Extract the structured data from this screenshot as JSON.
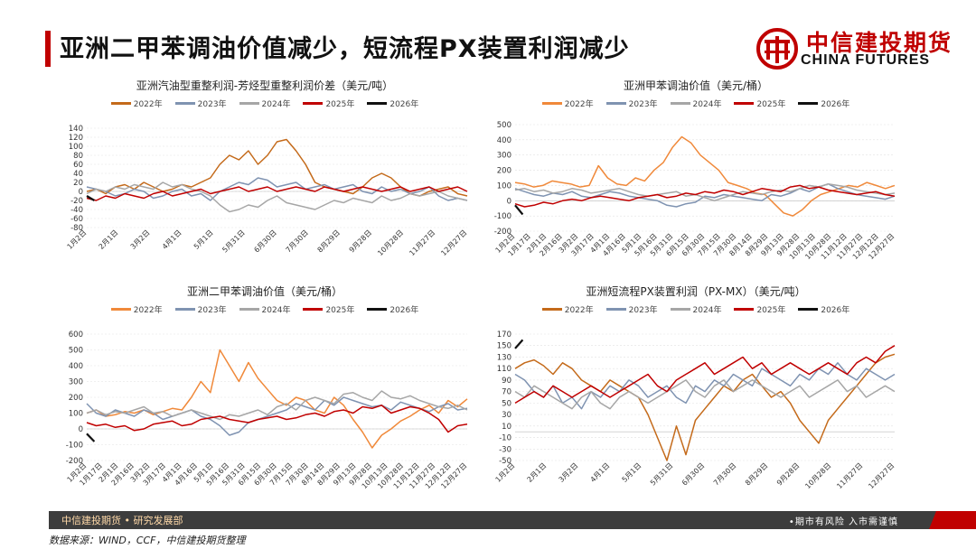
{
  "header": {
    "title": "亚洲二甲苯调油价值减少，短流程PX装置利润减少",
    "logo_cn": "中信建投期货",
    "logo_en": "CHINA FUTURES"
  },
  "footer": {
    "left": "中信建投期货 • 研究发展部",
    "right": "•期市有风险   入市需谨慎"
  },
  "source": "数据来源：WIND，CCF，中信建投期货整理",
  "colors": {
    "y2022": "#c46a1a",
    "y2023": "#7f93b1",
    "y2024": "#a6a6a6",
    "y2025": "#c00000",
    "y2026": "#111111",
    "y2022_alt": "#f0893a"
  },
  "chart_data": [
    {
      "id": "c1",
      "type": "line",
      "title": "亚洲汽油型重整利润-芳烃型重整利润价差（美元/吨）",
      "legend": [
        "2022年",
        "2023年",
        "2024年",
        "2025年",
        "2026年"
      ],
      "ylim": [
        -80,
        140
      ],
      "yticks": [
        "140",
        "120",
        "100",
        "80",
        "60",
        "40",
        "20",
        "0",
        "-20",
        "-40",
        "-60",
        "-80"
      ],
      "xticks": [
        "1月2日",
        "2月1日",
        "3月2日",
        "4月1日",
        "5月1日",
        "5月31日",
        "6月30日",
        "7月30日",
        "8月29日",
        "9月28日",
        "10月28日",
        "11月27日",
        "12月27日"
      ],
      "series": [
        {
          "name": "2022年",
          "color_key": "y2022",
          "start": 0,
          "end": 1,
          "values": [
            0,
            5,
            -5,
            10,
            15,
            5,
            20,
            10,
            0,
            5,
            15,
            10,
            20,
            30,
            60,
            80,
            70,
            90,
            60,
            80,
            110,
            115,
            90,
            60,
            20,
            10,
            5,
            0,
            -5,
            10,
            30,
            40,
            30,
            10,
            -5,
            -10,
            0,
            5,
            10,
            -5,
            -10
          ]
        },
        {
          "name": "2023年",
          "color_key": "y2023",
          "start": 0,
          "end": 1,
          "values": [
            10,
            5,
            0,
            -10,
            -5,
            5,
            0,
            -15,
            -10,
            0,
            5,
            -10,
            -5,
            -20,
            0,
            10,
            20,
            15,
            30,
            25,
            10,
            15,
            20,
            5,
            10,
            15,
            5,
            10,
            15,
            0,
            -5,
            10,
            0,
            5,
            -5,
            0,
            10,
            -10,
            -20,
            -15,
            -20
          ]
        },
        {
          "name": "2024年",
          "color_key": "y2024",
          "start": 0,
          "end": 1,
          "values": [
            -5,
            5,
            0,
            10,
            5,
            15,
            10,
            5,
            20,
            10,
            15,
            5,
            0,
            -10,
            -30,
            -45,
            -40,
            -30,
            -35,
            -20,
            -10,
            -25,
            -30,
            -35,
            -40,
            -30,
            -20,
            -25,
            -15,
            -20,
            -25,
            -10,
            -20,
            -15,
            -5,
            -10,
            -5,
            0,
            -10,
            -15,
            -20
          ]
        },
        {
          "name": "2025年",
          "color_key": "y2025",
          "start": 0,
          "end": 1,
          "values": [
            -15,
            -20,
            -10,
            -15,
            -5,
            -10,
            -15,
            -5,
            0,
            -10,
            -5,
            0,
            5,
            -5,
            0,
            5,
            10,
            0,
            5,
            10,
            0,
            5,
            10,
            5,
            0,
            10,
            5,
            0,
            5,
            10,
            5,
            0,
            5,
            10,
            0,
            5,
            10,
            0,
            5,
            10,
            0
          ]
        },
        {
          "name": "2026年",
          "color_key": "y2026",
          "start": 0,
          "end": 0.02,
          "values": [
            -10,
            -20
          ]
        }
      ]
    },
    {
      "id": "c2",
      "type": "line",
      "title": "亚洲甲苯调油价值（美元/桶）",
      "legend": [
        "2022年",
        "2023年",
        "2024年",
        "2025年",
        "2026年"
      ],
      "ylim": [
        -200,
        500
      ],
      "yticks": [
        "500",
        "400",
        "300",
        "200",
        "100",
        "0",
        "-100",
        "-200"
      ],
      "xticks": [
        "1月2日",
        "1月17日",
        "2月1日",
        "2月16日",
        "3月2日",
        "3月17日",
        "4月1日",
        "4月16日",
        "5月1日",
        "5月16日",
        "5月31日",
        "6月15日",
        "6月30日",
        "7月15日",
        "7月30日",
        "8月14日",
        "8月29日",
        "9月13日",
        "9月28日",
        "10月13日",
        "10月28日",
        "11月12日",
        "11月27日",
        "12月12日",
        "12月27日"
      ],
      "series": [
        {
          "name": "2022年",
          "color_key": "y2022_alt",
          "start": 0,
          "end": 1,
          "values": [
            120,
            110,
            90,
            100,
            130,
            120,
            110,
            90,
            100,
            230,
            150,
            110,
            100,
            150,
            130,
            200,
            250,
            350,
            420,
            380,
            300,
            250,
            200,
            120,
            100,
            80,
            50,
            40,
            -20,
            -80,
            -100,
            -60,
            0,
            40,
            60,
            80,
            100,
            90,
            120,
            100,
            80,
            100
          ]
        },
        {
          "name": "2023年",
          "color_key": "y2023",
          "start": 0,
          "end": 1,
          "values": [
            80,
            60,
            40,
            30,
            50,
            40,
            60,
            30,
            20,
            40,
            60,
            50,
            30,
            20,
            10,
            0,
            -30,
            -40,
            -20,
            -10,
            30,
            20,
            40,
            30,
            20,
            10,
            0,
            40,
            30,
            50,
            80,
            60,
            90,
            110,
            80,
            60,
            40,
            30,
            20,
            10,
            30
          ]
        },
        {
          "name": "2024年",
          "color_key": "y2024",
          "start": 0,
          "end": 1,
          "values": [
            70,
            80,
            60,
            70,
            50,
            60,
            80,
            70,
            50,
            60,
            70,
            80,
            60,
            40,
            30,
            40,
            50,
            60,
            30,
            40,
            20,
            0,
            20,
            40,
            60,
            50,
            40,
            60,
            70,
            60,
            80,
            100,
            90,
            110,
            100,
            90,
            70,
            60,
            50,
            40,
            50
          ]
        },
        {
          "name": "2025年",
          "color_key": "y2025",
          "start": 0,
          "end": 1,
          "values": [
            -20,
            -40,
            -30,
            -10,
            -20,
            0,
            10,
            0,
            20,
            30,
            20,
            10,
            0,
            20,
            30,
            40,
            20,
            30,
            50,
            40,
            60,
            50,
            70,
            60,
            40,
            60,
            80,
            70,
            60,
            90,
            100,
            80,
            90,
            70,
            60,
            50,
            40,
            50,
            60,
            40,
            30
          ]
        },
        {
          "name": "2026年",
          "color_key": "y2026",
          "start": 0,
          "end": 0.02,
          "values": [
            -30,
            -90
          ]
        }
      ]
    },
    {
      "id": "c3",
      "type": "line",
      "title": "亚洲二甲苯调油价值（美元/桶）",
      "legend": [
        "2022年",
        "2023年",
        "2024年",
        "2025年",
        "2026年"
      ],
      "ylim": [
        -200,
        600
      ],
      "yticks": [
        "600",
        "500",
        "400",
        "300",
        "200",
        "100",
        "0",
        "-100",
        "-200"
      ],
      "xticks": [
        "1月2日",
        "1月17日",
        "2月1日",
        "2月16日",
        "3月2日",
        "3月17日",
        "4月1日",
        "4月16日",
        "5月1日",
        "5月16日",
        "5月31日",
        "6月15日",
        "6月30日",
        "7月15日",
        "7月30日",
        "8月14日",
        "8月29日",
        "9月13日",
        "9月28日",
        "10月13日",
        "10月28日",
        "11月12日",
        "11月27日",
        "12月12日",
        "12月27日"
      ],
      "series": [
        {
          "name": "2022年",
          "color_key": "y2022_alt",
          "start": 0,
          "end": 1,
          "values": [
            100,
            120,
            80,
            90,
            110,
            100,
            120,
            90,
            110,
            130,
            120,
            200,
            300,
            230,
            500,
            400,
            300,
            420,
            320,
            250,
            180,
            150,
            200,
            180,
            120,
            100,
            200,
            150,
            60,
            -20,
            -120,
            -40,
            0,
            50,
            80,
            120,
            150,
            100,
            180,
            140,
            190
          ]
        },
        {
          "name": "2023年",
          "color_key": "y2023",
          "start": 0,
          "end": 1,
          "values": [
            160,
            100,
            80,
            120,
            100,
            80,
            120,
            100,
            60,
            80,
            100,
            120,
            80,
            60,
            20,
            -40,
            -20,
            40,
            60,
            80,
            100,
            120,
            160,
            140,
            120,
            180,
            150,
            200,
            180,
            160,
            140,
            150,
            120,
            170,
            150,
            130,
            110,
            140,
            160,
            120,
            130
          ]
        },
        {
          "name": "2024年",
          "color_key": "y2024",
          "start": 0,
          "end": 1,
          "values": [
            100,
            120,
            90,
            110,
            100,
            120,
            140,
            100,
            110,
            80,
            100,
            120,
            100,
            80,
            60,
            90,
            80,
            100,
            120,
            90,
            140,
            160,
            120,
            180,
            200,
            180,
            160,
            220,
            230,
            200,
            180,
            240,
            200,
            190,
            210,
            180,
            160,
            140,
            130,
            150,
            120
          ]
        },
        {
          "name": "2025年",
          "color_key": "y2025",
          "start": 0,
          "end": 1,
          "values": [
            40,
            20,
            30,
            10,
            20,
            -10,
            0,
            30,
            40,
            50,
            20,
            30,
            60,
            70,
            80,
            60,
            50,
            40,
            60,
            70,
            80,
            60,
            70,
            90,
            100,
            80,
            110,
            120,
            100,
            140,
            130,
            150,
            100,
            120,
            140,
            130,
            100,
            60,
            -20,
            20,
            30
          ]
        },
        {
          "name": "2026年",
          "color_key": "y2026",
          "start": 0,
          "end": 0.02,
          "values": [
            -30,
            -80
          ]
        }
      ]
    },
    {
      "id": "c4",
      "type": "line",
      "title": "亚洲短流程PX装置利润（PX-MX）（美元/吨）",
      "legend": [
        "2022年",
        "2023年",
        "2024年",
        "2025年",
        "2026年"
      ],
      "ylim": [
        -50,
        170
      ],
      "yticks": [
        "170",
        "150",
        "130",
        "110",
        "90",
        "70",
        "50",
        "30",
        "10",
        "-10",
        "-30",
        "-50"
      ],
      "xticks": [
        "1月2日",
        "2月1日",
        "3月2日",
        "4月1日",
        "5月1日",
        "5月31日",
        "6月30日",
        "7月30日",
        "8月29日",
        "9月28日",
        "10月28日",
        "11月27日",
        "12月27日"
      ],
      "series": [
        {
          "name": "2022年",
          "color_key": "y2022",
          "start": 0,
          "end": 1,
          "values": [
            110,
            120,
            125,
            115,
            100,
            120,
            110,
            90,
            80,
            70,
            90,
            80,
            70,
            60,
            30,
            -10,
            -50,
            10,
            -40,
            20,
            40,
            60,
            80,
            70,
            90,
            100,
            80,
            60,
            70,
            50,
            20,
            0,
            -20,
            20,
            40,
            60,
            80,
            100,
            120,
            130,
            135
          ]
        },
        {
          "name": "2023年",
          "color_key": "y2023",
          "start": 0,
          "end": 1,
          "values": [
            100,
            90,
            70,
            60,
            80,
            50,
            60,
            40,
            70,
            60,
            80,
            70,
            90,
            80,
            60,
            70,
            80,
            60,
            50,
            80,
            70,
            90,
            80,
            100,
            90,
            80,
            110,
            100,
            90,
            80,
            100,
            90,
            110,
            100,
            120,
            100,
            90,
            110,
            100,
            90,
            100
          ]
        },
        {
          "name": "2024年",
          "color_key": "y2024",
          "start": 0,
          "end": 1,
          "values": [
            70,
            60,
            80,
            70,
            60,
            50,
            40,
            60,
            70,
            50,
            40,
            60,
            70,
            60,
            50,
            60,
            70,
            80,
            90,
            70,
            60,
            80,
            90,
            70,
            80,
            90,
            80,
            70,
            60,
            70,
            80,
            60,
            70,
            80,
            90,
            70,
            80,
            60,
            70,
            80,
            70
          ]
        },
        {
          "name": "2025年",
          "color_key": "y2025",
          "start": 0,
          "end": 1,
          "values": [
            50,
            60,
            70,
            60,
            80,
            70,
            60,
            70,
            80,
            70,
            60,
            70,
            80,
            90,
            100,
            80,
            70,
            90,
            100,
            110,
            120,
            100,
            110,
            120,
            130,
            110,
            120,
            100,
            110,
            120,
            110,
            100,
            110,
            120,
            110,
            100,
            120,
            130,
            120,
            140,
            150
          ]
        },
        {
          "name": "2026年",
          "color_key": "y2026",
          "start": 0,
          "end": 0.02,
          "values": [
            145,
            160
          ]
        }
      ]
    }
  ]
}
